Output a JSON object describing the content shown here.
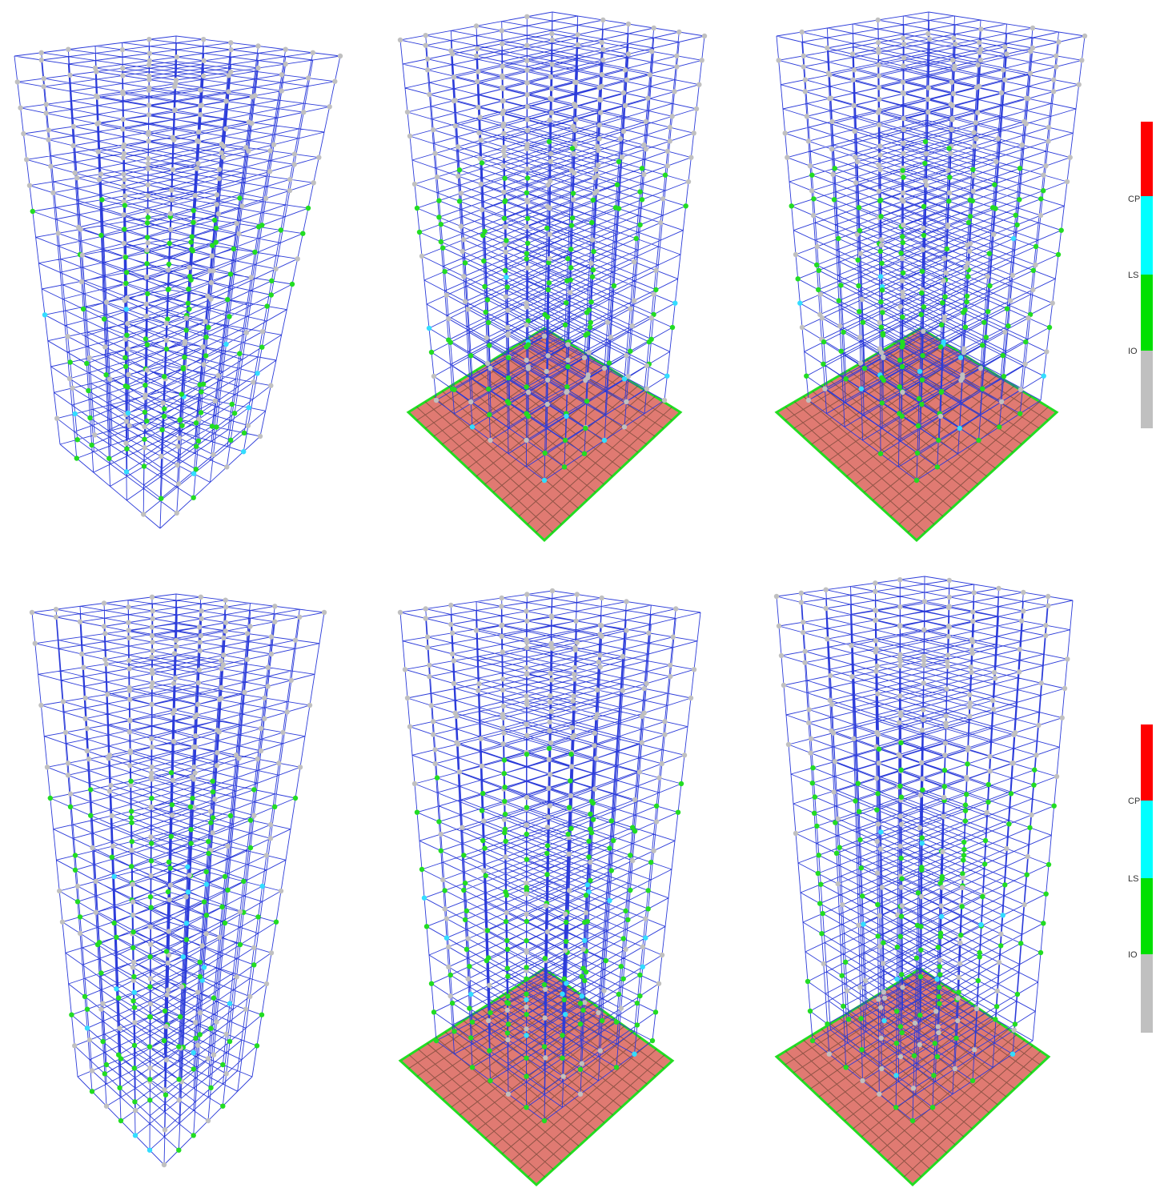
{
  "legends": [
    {
      "labels": [
        "CP",
        "LS",
        "IO"
      ]
    },
    {
      "labels": [
        "CP",
        "LS",
        "IO"
      ]
    }
  ]
}
